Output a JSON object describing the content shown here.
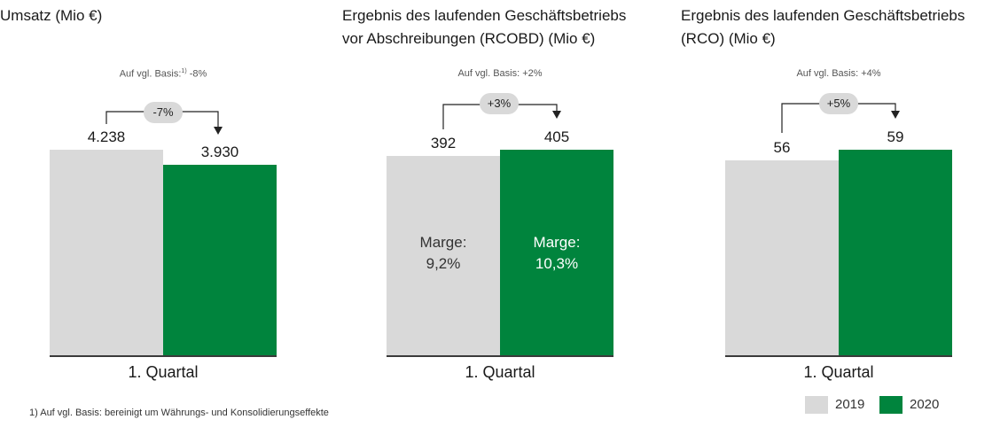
{
  "colors": {
    "y2019": "#d9d9d9",
    "y2020": "#00843d",
    "bubble": "#d9d9d9"
  },
  "chart_data": [
    {
      "type": "bar",
      "title_lines": [
        "Umsatz (Mio €)"
      ],
      "basis_prefix": "Auf vgl. Basis:",
      "basis_sup": "1)",
      "basis_value": " -8%",
      "categories": [
        "1. Quartal"
      ],
      "series": [
        {
          "name": "2019",
          "values": [
            4238
          ],
          "label": "4.238"
        },
        {
          "name": "2020",
          "values": [
            3930
          ],
          "label": "3.930"
        }
      ],
      "change_label": "-7%",
      "margins": null
    },
    {
      "type": "bar",
      "title_lines": [
        "Ergebnis des laufenden Geschäftsbetriebs",
        "vor Abschreibungen (RCOBD) (Mio €)"
      ],
      "basis_prefix": "Auf vgl. Basis: +2%",
      "basis_sup": "",
      "basis_value": "",
      "categories": [
        "1. Quartal"
      ],
      "series": [
        {
          "name": "2019",
          "values": [
            392
          ],
          "label": "392"
        },
        {
          "name": "2020",
          "values": [
            405
          ],
          "label": "405"
        }
      ],
      "change_label": "+3%",
      "margins": [
        {
          "label": "Marge:",
          "value": "9,2%"
        },
        {
          "label": "Marge:",
          "value": "10,3%"
        }
      ]
    },
    {
      "type": "bar",
      "title_lines": [
        "Ergebnis des laufenden Geschäftsbetriebs",
        "(RCO) (Mio €)"
      ],
      "basis_prefix": "Auf vgl. Basis: +4%",
      "basis_sup": "",
      "basis_value": "",
      "categories": [
        "1. Quartal"
      ],
      "series": [
        {
          "name": "2019",
          "values": [
            56
          ],
          "label": "56"
        },
        {
          "name": "2020",
          "values": [
            59
          ],
          "label": "59"
        }
      ],
      "change_label": "+5%",
      "margins": null
    }
  ],
  "legend": [
    {
      "label": "2019"
    },
    {
      "label": "2020"
    }
  ],
  "footnote": "1) Auf vgl. Basis: bereinigt um Währungs- und Konsolidierungseffekte"
}
